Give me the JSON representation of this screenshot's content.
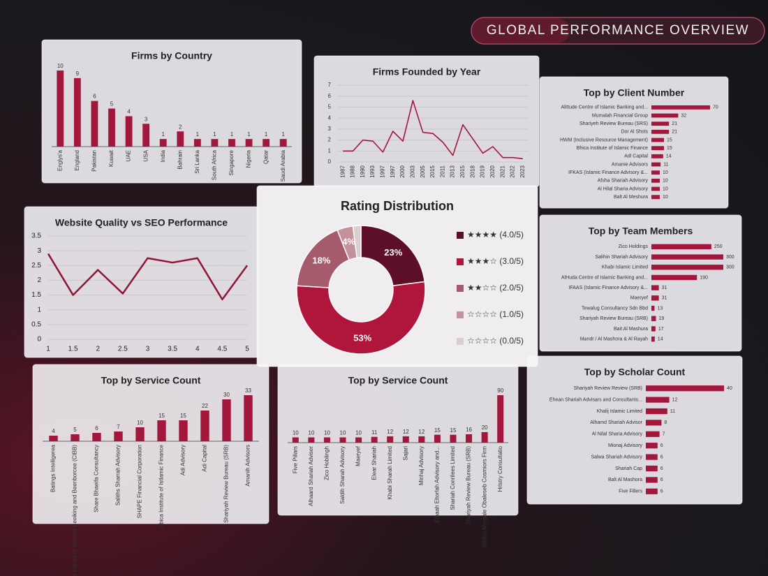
{
  "title": "GLOBAL PERFORMANCE OVERVIEW",
  "chart_data": [
    {
      "type": "bar",
      "title": "Firms by Country",
      "color": "#a3173d",
      "categories": [
        "Englys'a",
        "England",
        "Pakistan",
        "Kuwait",
        "UAE",
        "USA",
        "India",
        "Bahrain",
        "Sri Lanka",
        "South Africa",
        "Singapore",
        "Nigeria",
        "Qatar",
        "Saudi Arabia"
      ],
      "values": [
        10,
        9,
        6,
        5,
        4,
        3,
        1,
        2,
        1,
        1,
        1,
        1,
        1,
        1
      ]
    },
    {
      "type": "line",
      "title": "Firms Founded by Year",
      "color": "#a3173d",
      "categories": [
        "1987",
        "1988",
        "1990",
        "1993",
        "1997",
        "1997",
        "2000",
        "2003",
        "2005",
        "2015",
        "2011",
        "2013",
        "2015",
        "2018",
        "2019",
        "2020",
        "2021",
        "2022",
        "2023"
      ],
      "values": [
        1,
        1,
        2,
        1.9,
        0.9,
        2.8,
        1.9,
        5.6,
        2.7,
        2.6,
        1.8,
        0.6,
        3.4,
        2.1,
        0.8,
        1.4,
        0.4,
        0.4,
        0.3
      ],
      "ylim": [
        0,
        7
      ],
      "yticks": [
        0,
        1,
        2,
        3,
        4,
        5,
        6,
        7
      ],
      "grid": true
    },
    {
      "type": "hbar",
      "title": "Top by Client Number",
      "color": "#a3173d",
      "categories": [
        "Alittude Centre of Islamic Banking and...",
        "Mumalah Financial Group",
        "Shariyeh Review Bureau (SRS)",
        "Dor Al Shsts",
        "HWM (Inclusive Resource Management)",
        "Bhica Institute of Islamic Finance",
        "Adl Capital",
        "Amanie Advisors",
        "IFKAS (Islamic Finance Advisory &...",
        "Afsha Shariah Advisory",
        "Al Hilal Sharia Advisory",
        "Balt Al Meshura"
      ],
      "values": [
        70,
        32,
        21,
        21,
        15,
        15,
        14,
        11,
        10,
        10,
        10,
        10
      ]
    },
    {
      "type": "line",
      "title": "Website Quality vs SEO Performance",
      "color": "#8e1533",
      "x": [
        1,
        1.5,
        2,
        2.5,
        3,
        3.5,
        4,
        4.5,
        5
      ],
      "values": [
        2.9,
        1.5,
        2.35,
        1.55,
        2.75,
        2.6,
        2.75,
        1.35,
        2.5
      ],
      "xlim": [
        1,
        5
      ],
      "xticks": [
        1,
        1.5,
        2,
        2.5,
        3,
        3.5,
        4,
        4.5,
        5
      ],
      "ylim": [
        0,
        3.5
      ],
      "yticks": [
        0,
        0.5,
        1,
        1.5,
        2,
        2.5,
        3,
        3.5
      ],
      "grid": true
    },
    {
      "type": "hbar",
      "title": "Top by Team Members",
      "color": "#a3173d",
      "categories": [
        "Zico Holdings",
        "Salihin Shariah Advisory",
        "Khabi Islamic Limited",
        "AlHuda Centre of Islamic Banking and...",
        "IFAAS (Islamic Finance Advisory &...",
        "Maeryef",
        "Tewalug Consultancy Sdn Bbd",
        "Shariyah Review Bureau (SRB)",
        "Bait Al Mashura",
        "Mandr / Al Mashora & Al Rayah"
      ],
      "values": [
        250,
        300,
        300,
        190,
        31,
        31,
        13,
        19,
        17,
        14
      ]
    },
    {
      "type": "bar",
      "title": "Top by Service Count",
      "color": "#a3173d",
      "categories": [
        "Batings Intelligerea",
        "Adleefa Centre of Bsbeeb Beeiking and Beenborcee (CIBB)",
        "Share Bhaeifa Consultancy",
        "Saliths Sharrah Advisory",
        "SHAPE Financial Corporation",
        "Sbica Institute of Istlamic Finance",
        "Adi Advisory",
        "Adi Capital",
        "Shariyah Review Bureau (SRB)",
        "Amanih Advisors"
      ],
      "values": [
        4,
        5,
        6,
        7,
        10,
        15,
        15,
        22,
        30,
        33
      ]
    },
    {
      "type": "bar",
      "title": "Top by Service Count",
      "color": "#a3173d",
      "categories": [
        "Five Pillars",
        "Alhaard Shariah Adviser",
        "Zico Hoblingh",
        "Saldih Sharah Advisory",
        "Maeryef",
        "Elear Shariah",
        "Khabi Sharah Limited",
        "Sajari",
        "Minhaj Advisory",
        "Elhaah Eltorfah Advisory and...",
        "Shariah Conrilees Limited",
        "Shariyah Review Bureau (SRB)",
        "Global Mergale Obaleseb Cosmiors Firm",
        "Hrlstry Consultatio"
      ],
      "values": [
        10,
        10,
        10,
        10,
        10,
        11,
        12,
        12,
        12,
        15,
        15,
        16,
        20,
        90
      ]
    },
    {
      "type": "hbar",
      "title": "Top by Scholar Count",
      "color": "#a3173d",
      "categories": [
        "Shariyah Review Review (SRB)",
        "Ehean Shariah Advisars and Consultants...",
        "Khalij Islamic Limited",
        "Alhamd Shariah Advisor",
        "Al Nilal Sharia Advisory",
        "Mionaj Advisory",
        "Salwa Shariah Advisory",
        "Shariah Cap",
        "Balt Al Mashora",
        "Five Fillers"
      ],
      "values": [
        40,
        12,
        11,
        8,
        7,
        6,
        6,
        6,
        6,
        6
      ]
    },
    {
      "type": "donut",
      "title": "Rating Distribution",
      "categories": [
        "★★★★ (4.0/5)",
        "★★★☆ (3.0/5)",
        "★★☆☆ (2.0/5)",
        "☆☆☆☆ (1.0/5)",
        "☆☆☆☆ (0.0/5)"
      ],
      "values": [
        23,
        53,
        18,
        4,
        2
      ],
      "value_labels": [
        "23%",
        "53%",
        "18%",
        "4%",
        null
      ],
      "colors": [
        "#5e0f28",
        "#b0163c",
        "#a65b6c",
        "#c4919b",
        "#d9cfd2"
      ]
    }
  ]
}
